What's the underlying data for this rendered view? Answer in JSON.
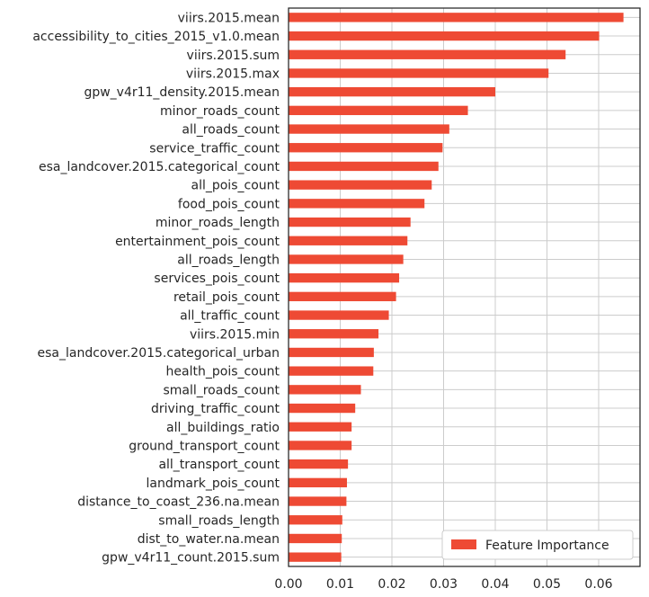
{
  "chart_data": {
    "type": "bar",
    "orientation": "horizontal",
    "categories": [
      "viirs.2015.mean",
      "accessibility_to_cities_2015_v1.0.mean",
      "viirs.2015.sum",
      "viirs.2015.max",
      "gpw_v4r11_density.2015.mean",
      "minor_roads_count",
      "all_roads_count",
      "service_traffic_count",
      "esa_landcover.2015.categorical_count",
      "all_pois_count",
      "food_pois_count",
      "minor_roads_length",
      "entertainment_pois_count",
      "all_roads_length",
      "services_pois_count",
      "retail_pois_count",
      "all_traffic_count",
      "viirs.2015.min",
      "esa_landcover.2015.categorical_urban",
      "health_pois_count",
      "small_roads_count",
      "driving_traffic_count",
      "all_buildings_ratio",
      "ground_transport_count",
      "all_transport_count",
      "landmark_pois_count",
      "distance_to_coast_236.na.mean",
      "small_roads_length",
      "dist_to_water.na.mean",
      "gpw_v4r11_count.2015.sum"
    ],
    "series": [
      {
        "name": "Feature Importance",
        "color": "#ee4a34",
        "values": [
          0.0648,
          0.0601,
          0.0536,
          0.0503,
          0.04,
          0.0347,
          0.0311,
          0.0298,
          0.029,
          0.0277,
          0.0263,
          0.0236,
          0.023,
          0.0222,
          0.0214,
          0.0208,
          0.0194,
          0.0174,
          0.0165,
          0.0164,
          0.014,
          0.0129,
          0.0122,
          0.0122,
          0.0115,
          0.0113,
          0.0112,
          0.0104,
          0.0103,
          0.0102
        ]
      }
    ],
    "xlim": [
      0,
      0.068
    ],
    "xticks": [
      0.0,
      0.01,
      0.02,
      0.03,
      0.04,
      0.05,
      0.06
    ],
    "xtick_labels": [
      "0.00",
      "0.01",
      "0.02",
      "0.03",
      "0.04",
      "0.05",
      "0.06"
    ],
    "grid": true,
    "legend_position": "bottom-right",
    "title": "",
    "xlabel": "",
    "ylabel": ""
  }
}
